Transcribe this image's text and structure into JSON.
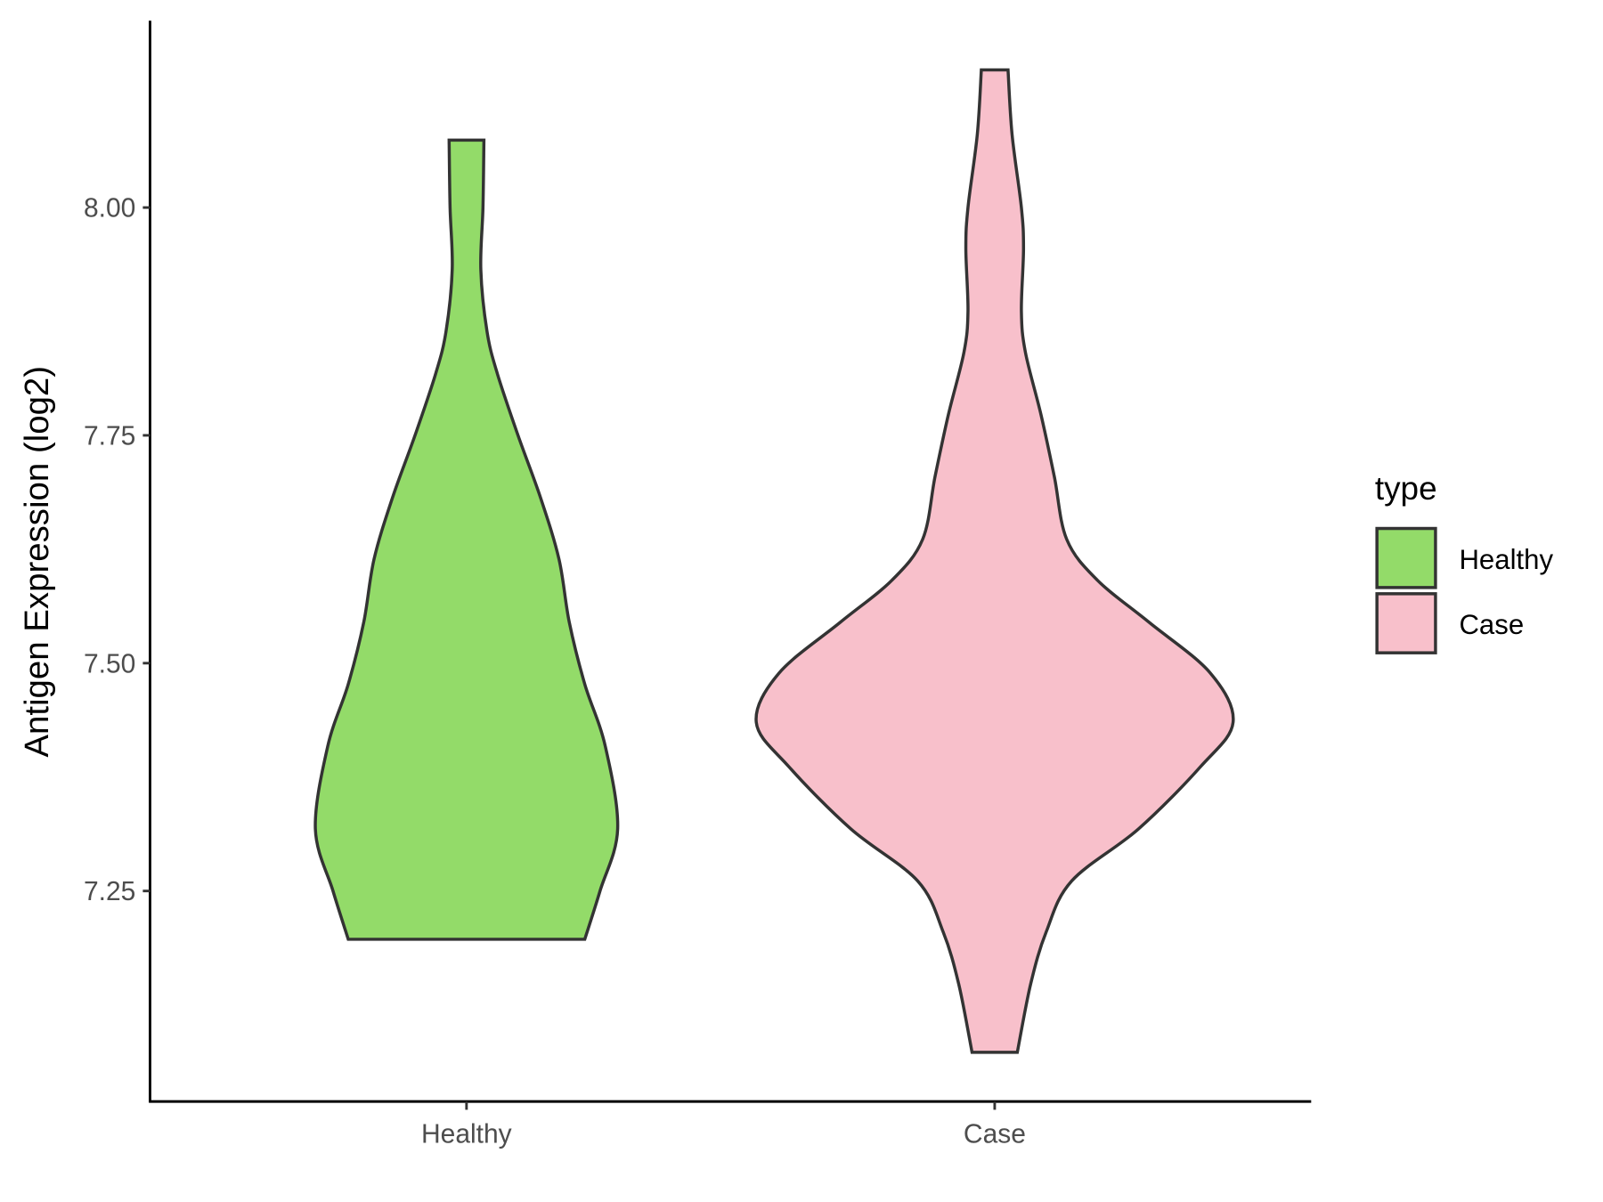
{
  "chart_data": {
    "type": "violin",
    "ylabel": "Antigen Expression (log2)",
    "xlabel": "",
    "categories": [
      "Healthy",
      "Case"
    ],
    "ylim": [
      7.019,
      8.205
    ],
    "yticks": [
      7.25,
      7.5,
      7.75,
      8.0
    ],
    "ytick_labels": [
      "7.25",
      "7.50",
      "7.75",
      "8.00"
    ],
    "grid": false,
    "legend": {
      "title": "type",
      "position": "right",
      "entries": [
        "Healthy",
        "Case"
      ]
    },
    "colors": {
      "Healthy": "#93DB69",
      "Case": "#F8C0CB",
      "outline": "#333333"
    },
    "series": [
      {
        "name": "Healthy",
        "range": [
          7.197,
          8.074
        ],
        "density_profile": [
          [
            8.074,
            0.073
          ],
          [
            8.0,
            0.069
          ],
          [
            7.932,
            0.06
          ],
          [
            7.864,
            0.086
          ],
          [
            7.818,
            0.129
          ],
          [
            7.75,
            0.216
          ],
          [
            7.682,
            0.31
          ],
          [
            7.614,
            0.388
          ],
          [
            7.545,
            0.431
          ],
          [
            7.477,
            0.496
          ],
          [
            7.409,
            0.582
          ],
          [
            7.318,
            0.634
          ],
          [
            7.25,
            0.56
          ],
          [
            7.197,
            0.496
          ]
        ]
      },
      {
        "name": "Case",
        "range": [
          7.073,
          8.151
        ],
        "density_profile": [
          [
            8.151,
            0.056
          ],
          [
            8.08,
            0.073
          ],
          [
            8.0,
            0.112
          ],
          [
            7.955,
            0.121
          ],
          [
            7.886,
            0.112
          ],
          [
            7.841,
            0.129
          ],
          [
            7.773,
            0.194
          ],
          [
            7.705,
            0.25
          ],
          [
            7.636,
            0.302
          ],
          [
            7.591,
            0.431
          ],
          [
            7.545,
            0.647
          ],
          [
            7.489,
            0.905
          ],
          [
            7.435,
            1.0
          ],
          [
            7.386,
            0.862
          ],
          [
            7.318,
            0.603
          ],
          [
            7.261,
            0.323
          ],
          [
            7.205,
            0.216
          ],
          [
            7.148,
            0.151
          ],
          [
            7.073,
            0.095
          ]
        ]
      }
    ]
  }
}
